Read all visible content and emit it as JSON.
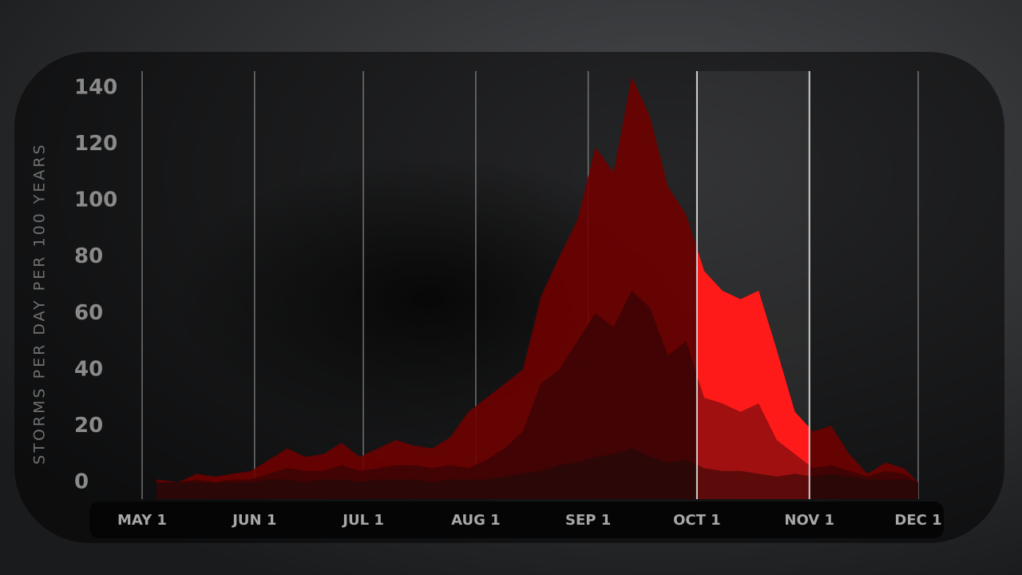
{
  "chart_data": {
    "type": "area",
    "y_label": "STORMS PER DAY PER 100 YEARS",
    "xlim": [
      0,
      214
    ],
    "xticks": [
      {
        "value": 0,
        "label": "MAY 1"
      },
      {
        "value": 31,
        "label": "JUN 1"
      },
      {
        "value": 61,
        "label": "JUL 1"
      },
      {
        "value": 92,
        "label": "AUG 1"
      },
      {
        "value": 123,
        "label": "SEP 1"
      },
      {
        "value": 153,
        "label": "OCT 1"
      },
      {
        "value": 184,
        "label": "NOV 1"
      },
      {
        "value": 214,
        "label": "DEC 1"
      }
    ],
    "ylim": [
      -6,
      146
    ],
    "yticks": [
      0,
      20,
      40,
      60,
      80,
      100,
      120,
      140
    ],
    "x_grid": true,
    "highlight": {
      "from": 153,
      "to": 184
    },
    "x": [
      4,
      10,
      15,
      20,
      25,
      30,
      35,
      40,
      45,
      50,
      55,
      60,
      65,
      70,
      75,
      80,
      85,
      90,
      95,
      100,
      105,
      110,
      115,
      120,
      125,
      130,
      135,
      140,
      145,
      150,
      155,
      160,
      165,
      170,
      175,
      180,
      185,
      190,
      195,
      200,
      205,
      210,
      214
    ],
    "series": [
      {
        "color": "#6e0000",
        "highlight_color": "#ff1a1a",
        "values": [
          1,
          0,
          3,
          2,
          3,
          4,
          8,
          12,
          9,
          10,
          14,
          9,
          12,
          15,
          13,
          12,
          16,
          25,
          30,
          35,
          40,
          66,
          80,
          93,
          119,
          110,
          144,
          130,
          105,
          95,
          75,
          68,
          65,
          68,
          47,
          25,
          18,
          20,
          10,
          3,
          7,
          5,
          0
        ]
      },
      {
        "color": "#3d0303",
        "highlight_color": "#a01010",
        "values": [
          0,
          0,
          1,
          0,
          1,
          1,
          3,
          5,
          4,
          4,
          6,
          4,
          5,
          6,
          6,
          5,
          6,
          5,
          8,
          12,
          18,
          35,
          40,
          50,
          60,
          55,
          68,
          62,
          45,
          50,
          30,
          28,
          25,
          28,
          15,
          10,
          5,
          6,
          4,
          2,
          4,
          3,
          0
        ]
      },
      {
        "color": "#2a0808",
        "highlight_color": "#5c0a0a",
        "values": [
          0,
          0,
          0,
          0,
          0,
          0,
          1,
          1,
          0,
          1,
          1,
          0,
          1,
          1,
          1,
          0,
          1,
          1,
          1,
          2,
          3,
          4,
          6,
          7,
          9,
          10,
          12,
          9,
          7,
          8,
          5,
          4,
          4,
          3,
          2,
          3,
          2,
          3,
          2,
          1,
          1,
          1,
          0
        ]
      }
    ]
  }
}
